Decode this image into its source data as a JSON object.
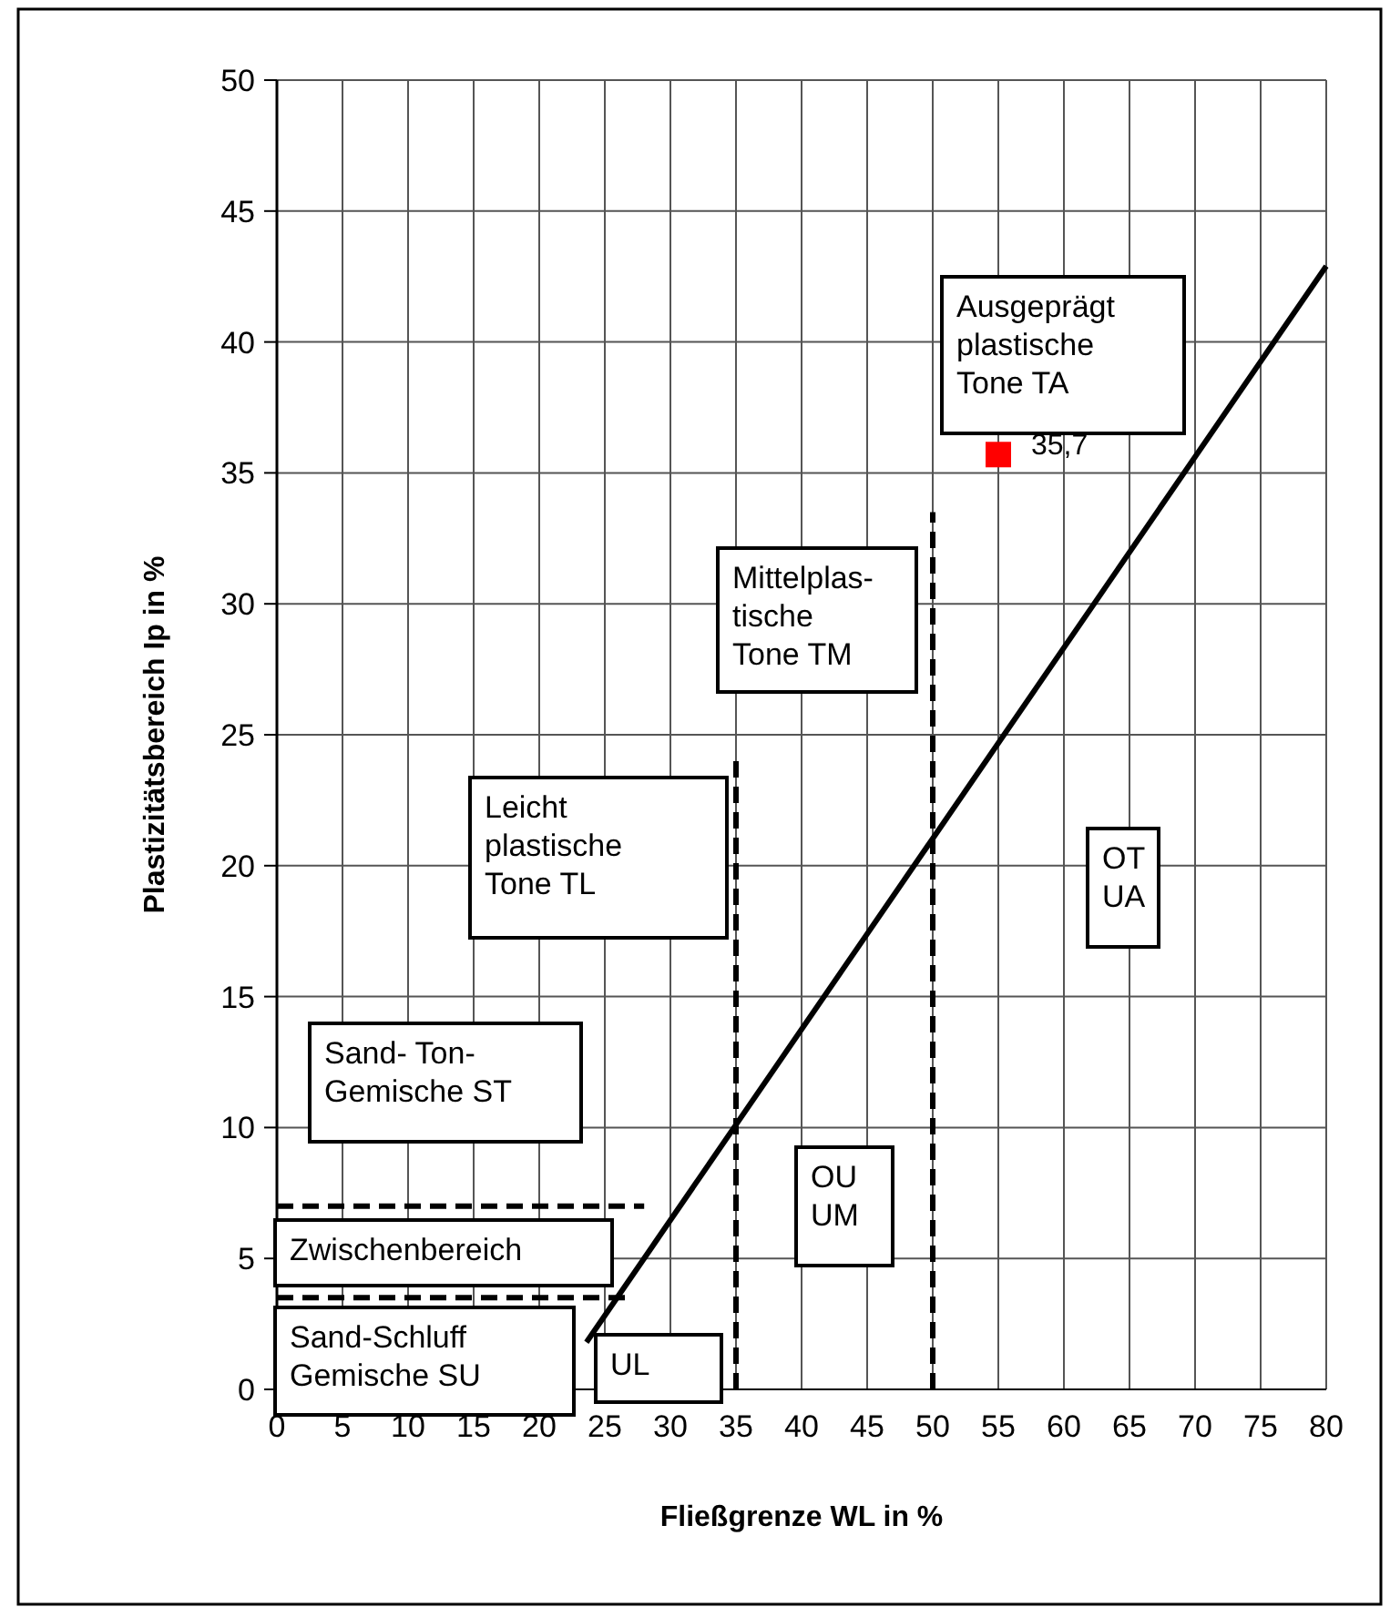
{
  "chart_data": {
    "type": "line",
    "xlabel": "Fließgrenze WL in %",
    "ylabel": "Plastizitätsbereich Ip in %",
    "xlim": [
      0,
      80
    ],
    "xticks": [
      0,
      5,
      10,
      15,
      20,
      25,
      30,
      35,
      40,
      45,
      50,
      55,
      60,
      65,
      70,
      75,
      80
    ],
    "ylim": [
      0,
      50
    ],
    "yticks": [
      0,
      5,
      10,
      15,
      20,
      25,
      30,
      35,
      40,
      45,
      50
    ],
    "grid": true,
    "series": [
      {
        "color": "#000000",
        "line_style": "solid",
        "x": [
          23.6,
          80
        ],
        "values": [
          1.8,
          42.9
        ]
      },
      {
        "type": "line",
        "color": "#000000",
        "line_style": "dashed",
        "x": [
          35,
          35
        ],
        "values": [
          0,
          24
        ]
      },
      {
        "type": "line",
        "color": "#000000",
        "line_style": "dashed",
        "x": [
          50,
          50
        ],
        "values": [
          0,
          33.5
        ]
      },
      {
        "type": "line",
        "color": "#000000",
        "line_style": "dashed",
        "x": [
          0,
          28
        ],
        "values": [
          7,
          7
        ]
      },
      {
        "type": "line",
        "color": "#000000",
        "line_style": "dashed",
        "x": [
          0,
          27
        ],
        "values": [
          3.5,
          3.5
        ]
      },
      {
        "type": "scatter",
        "color": "#ff0000",
        "marker": "square",
        "x": [
          55
        ],
        "values": [
          35.7
        ],
        "value_labels": [
          "35,7"
        ]
      }
    ],
    "annotations": [
      "Ausgeprägt\nplastische\nTone TA",
      "Mittelplas-\ntische\nTone TM",
      "Leicht\nplastische\nTone TL",
      "OT\nUA",
      "Sand- Ton-\nGemische ST",
      "OU\nUM",
      "Zwischenbereich",
      "Sand-Schluff\nGemische SU",
      "UL"
    ]
  }
}
